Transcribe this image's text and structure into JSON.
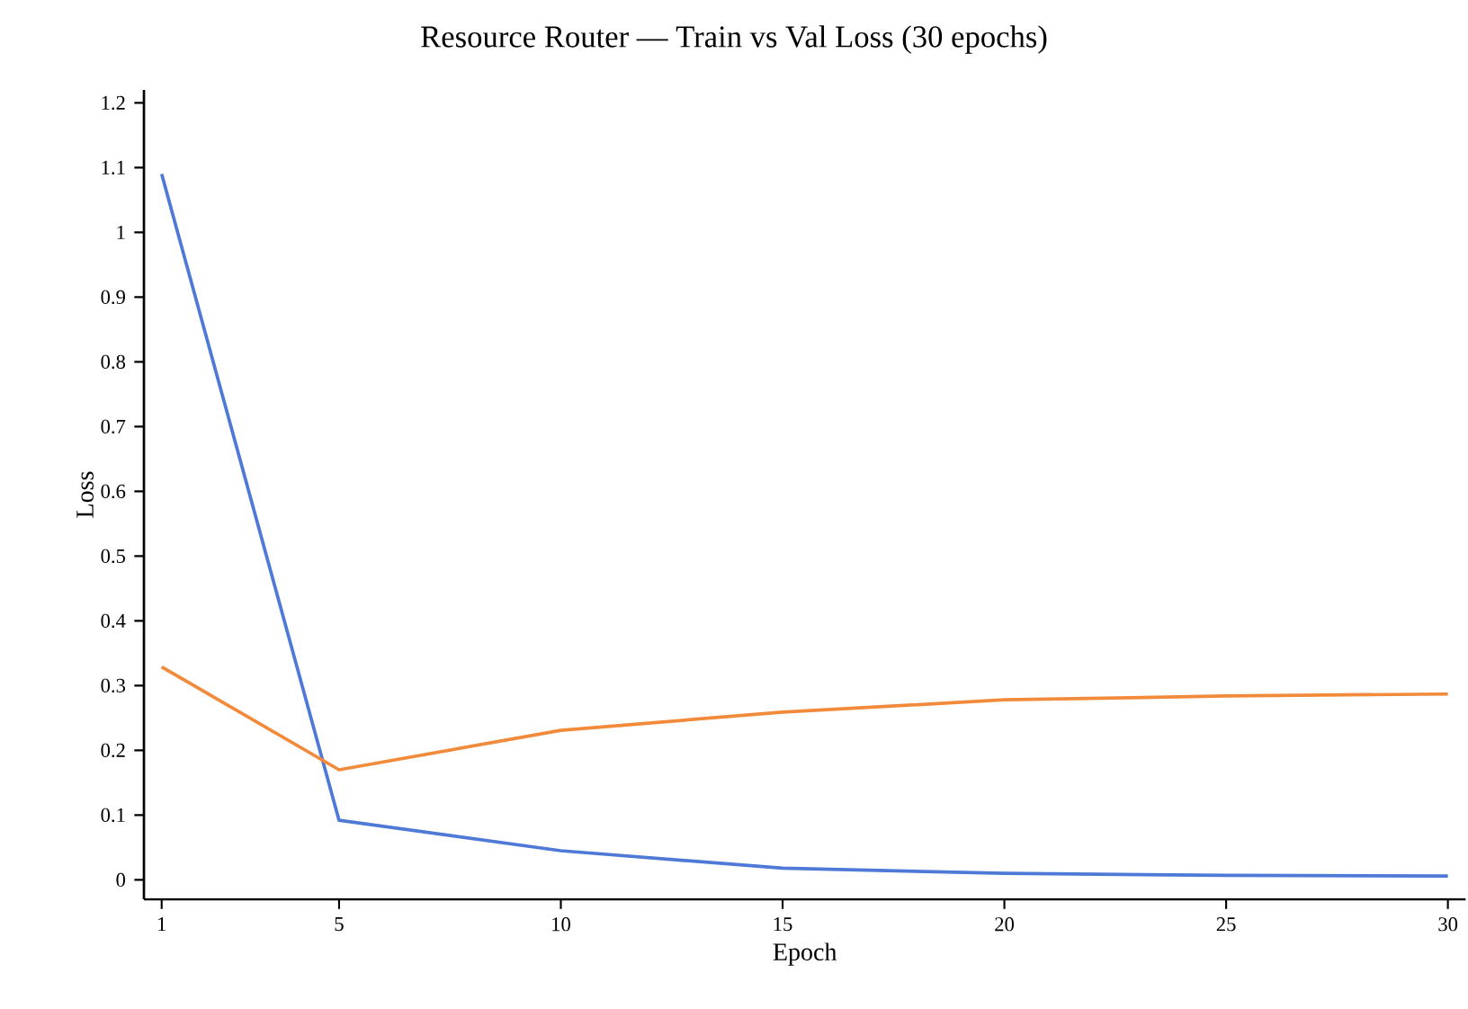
{
  "chart_data": {
    "type": "line",
    "title": "Resource Router — Train vs Val Loss (30 epochs)",
    "xlabel": "Epoch",
    "ylabel": "Loss",
    "x": [
      1,
      5,
      10,
      15,
      20,
      25,
      30
    ],
    "series": [
      {
        "color": "#4e79d6",
        "values": [
          1.09,
          0.092,
          0.045,
          0.018,
          0.01,
          0.007,
          0.006
        ]
      },
      {
        "color": "#f28a3c",
        "values": [
          0.329,
          0.17,
          0.231,
          0.259,
          0.278,
          0.284,
          0.287
        ]
      }
    ],
    "xlim": [
      0.6,
      30.4
    ],
    "ylim": [
      -0.03,
      1.22
    ],
    "xticks": [
      1,
      5,
      10,
      15,
      20,
      25,
      30
    ],
    "yticks": [
      0,
      0.1,
      0.2,
      0.3,
      0.4,
      0.5,
      0.6,
      0.7,
      0.8,
      0.9,
      1,
      1.1,
      1.2
    ],
    "marker": "none",
    "line_style": "solid"
  }
}
